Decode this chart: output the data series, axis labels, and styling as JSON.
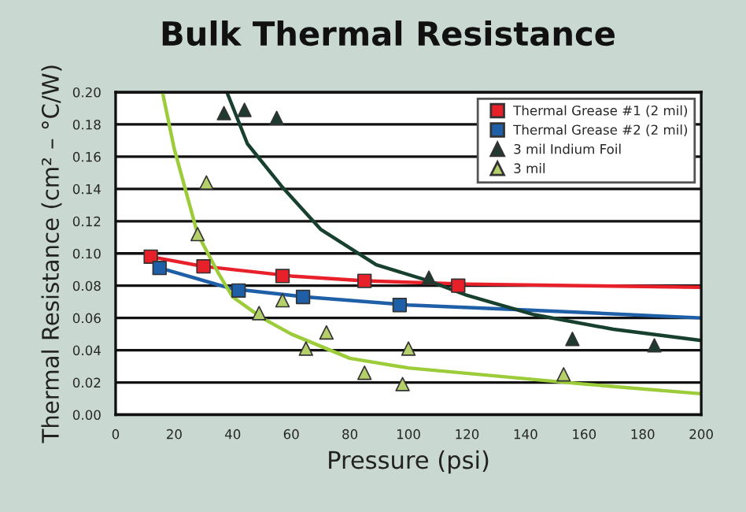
{
  "chart_data": {
    "type": "scatter",
    "title": "Bulk Thermal Resistance",
    "xlabel": "Pressure (psi)",
    "ylabel": "Thermal Resistance (cm² – °C/W)",
    "xlim": [
      0,
      200
    ],
    "xticks": [
      0,
      20,
      40,
      60,
      80,
      100,
      120,
      140,
      160,
      180,
      200
    ],
    "ylim": [
      0,
      0.2
    ],
    "yticks": [
      {
        "value": 0,
        "label": "0.00"
      },
      {
        "value": 0.02,
        "label": "0.02"
      },
      {
        "value": 0.04,
        "label": "0.04"
      },
      {
        "value": 0.06,
        "label": "0.06"
      },
      {
        "value": 0.08,
        "label": "0.08"
      },
      {
        "value": 0.1,
        "label": "0.10"
      },
      {
        "value": 0.12,
        "label": "0.12"
      },
      {
        "value": 0.14,
        "label": "0.14"
      },
      {
        "value": 0.16,
        "label": "0.16"
      },
      {
        "value": 0.18,
        "label": "0.18"
      },
      {
        "value": 0.2,
        "label": "0.20"
      }
    ],
    "grid": "y",
    "legend": "top right",
    "series": [
      {
        "type": "line",
        "color": "#e8202a",
        "x": [
          12,
          30,
          60,
          85,
          120,
          160,
          200
        ],
        "values": [
          0.098,
          0.092,
          0.086,
          0.083,
          0.081,
          0.08,
          0.079
        ]
      },
      {
        "type": "line",
        "color": "#1f5fa8",
        "x": [
          15,
          40,
          65,
          100,
          140,
          200
        ],
        "values": [
          0.091,
          0.078,
          0.073,
          0.068,
          0.065,
          0.06
        ]
      },
      {
        "type": "line",
        "color": "#17402f",
        "x": [
          38,
          45,
          57,
          70,
          89,
          107,
          120,
          143,
          170,
          200
        ],
        "values": [
          0.2,
          0.168,
          0.141,
          0.115,
          0.093,
          0.083,
          0.074,
          0.062,
          0.053,
          0.046
        ]
      },
      {
        "type": "line",
        "color": "#9ccc3a",
        "x": [
          16,
          20,
          28,
          35,
          40,
          50,
          60,
          80,
          100,
          130,
          160,
          200
        ],
        "values": [
          0.2,
          0.165,
          0.112,
          0.088,
          0.073,
          0.06,
          0.05,
          0.035,
          0.029,
          0.024,
          0.019,
          0.013
        ]
      },
      {
        "name": "Thermal Grease #1 (2 mil)",
        "marker": "square",
        "color": "#e8202a",
        "x": [
          12,
          30,
          57,
          85,
          117
        ],
        "values": [
          0.098,
          0.092,
          0.086,
          0.083,
          0.08
        ]
      },
      {
        "name": "Thermal Grease #2 (2 mil)",
        "marker": "square",
        "color": "#1f5fa8",
        "x": [
          15,
          42,
          64,
          97
        ],
        "values": [
          0.091,
          0.077,
          0.073,
          0.068
        ]
      },
      {
        "name": "3 mil Indium Foil",
        "marker": "triangle",
        "color": "#1f3a2e",
        "x": [
          37,
          44,
          55,
          107,
          156,
          184
        ],
        "values": [
          0.187,
          0.189,
          0.184,
          0.085,
          0.047,
          0.043
        ]
      },
      {
        "name": "3 mil",
        "marker": "triangle",
        "color": "#b5cf6a",
        "x": [
          28,
          31,
          49,
          57,
          65,
          72,
          85,
          98,
          100,
          153
        ],
        "values": [
          0.112,
          0.144,
          0.063,
          0.071,
          0.041,
          0.051,
          0.026,
          0.019,
          0.041,
          0.025
        ]
      }
    ]
  }
}
